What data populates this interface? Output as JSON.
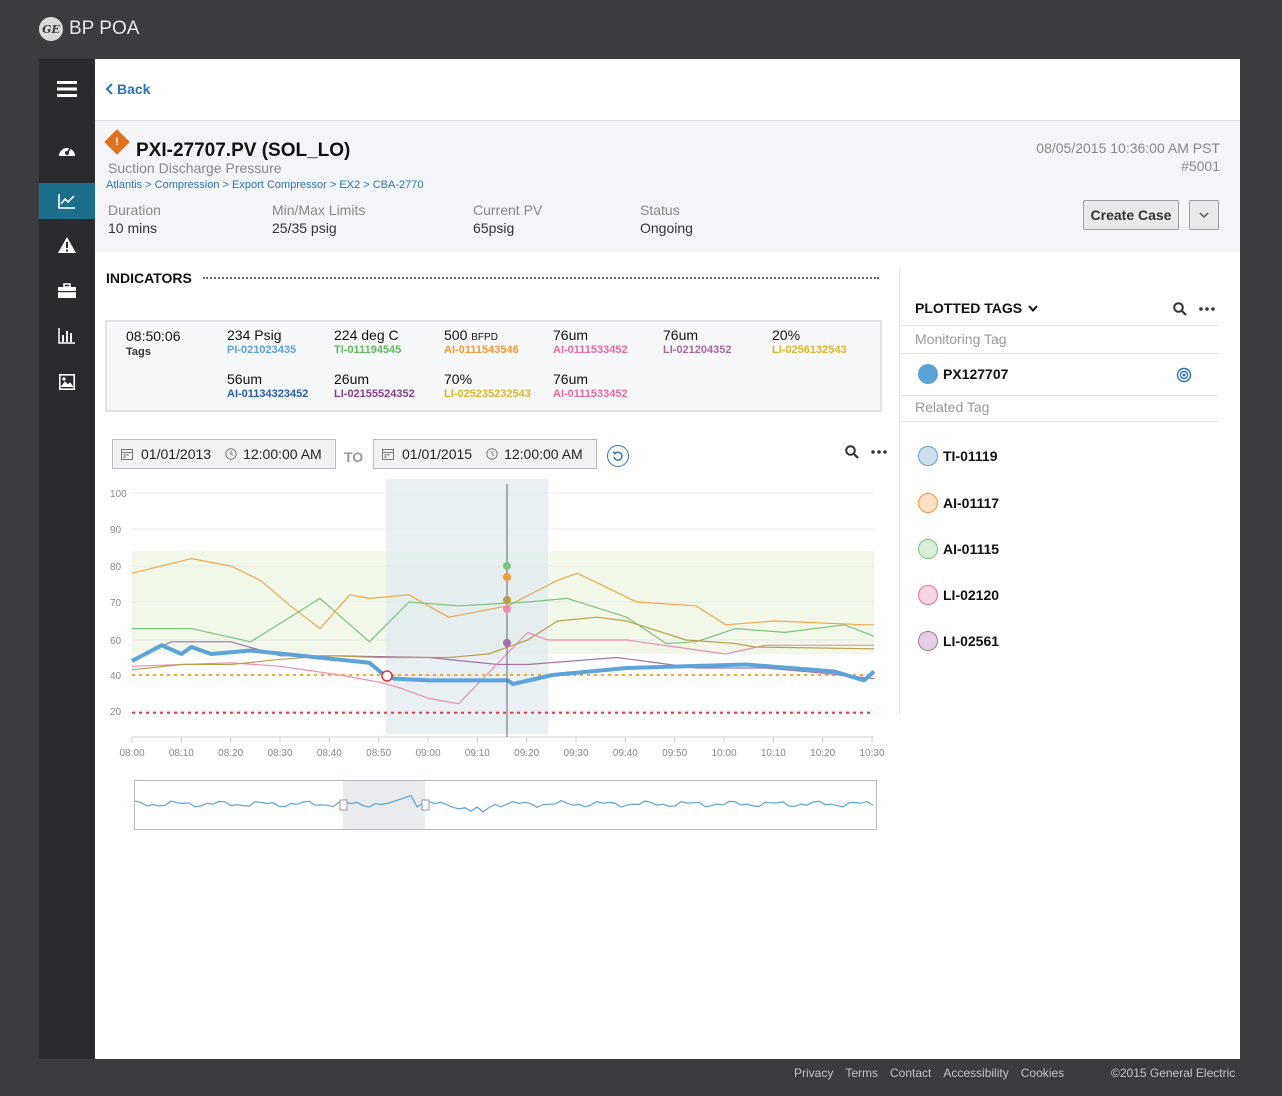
{
  "app": {
    "logo_text": "GE",
    "title": "BP POA"
  },
  "nav": {
    "items": [
      {
        "icon": "menu-icon"
      },
      {
        "icon": "dashboard-icon"
      },
      {
        "icon": "trend-chart-icon",
        "active": true
      },
      {
        "icon": "alert-icon"
      },
      {
        "icon": "briefcase-icon"
      },
      {
        "icon": "bar-chart-icon"
      },
      {
        "icon": "image-report-icon"
      }
    ]
  },
  "back_label": "Back",
  "header": {
    "alert_symbol": "!",
    "title": "PXI-27707.PV (SOL_LO)",
    "subtitle": "Suction Discharge Pressure",
    "breadcrumb": [
      "Atlantis",
      "Compression",
      "Export Compressor",
      "EX2",
      "CBA-2770"
    ],
    "breadcrumb_sep": ">",
    "datetime": "08/05/2015 10:36:00 AM PST",
    "event_id": "#5001",
    "meta": [
      {
        "label": "Duration",
        "value": "10 mins"
      },
      {
        "label": "Min/Max Limits",
        "value": "25/35 psig"
      },
      {
        "label": "Current PV",
        "value": "65psig"
      },
      {
        "label": "Status",
        "value": "Ongoing"
      }
    ],
    "create_case_label": "Create Case"
  },
  "indicators": {
    "title": "INDICATORS",
    "time": "08:50:06",
    "tags_label": "Tags",
    "items": [
      {
        "value": "234 Psig",
        "unit": "",
        "tag": "PI-021023435",
        "color": "#5ba3d9"
      },
      {
        "value": "224 deg C",
        "unit": "",
        "tag": "TI-011194545",
        "color": "#5fb85f"
      },
      {
        "value": "500",
        "unit": "BFPD",
        "tag": "AI-0111543546",
        "color": "#f29a36"
      },
      {
        "value": "76um",
        "unit": "",
        "tag": "AI-0111533452",
        "color": "#e86a9e"
      },
      {
        "value": "76um",
        "unit": "",
        "tag": "LI-021204352",
        "color": "#a8659d"
      },
      {
        "value": "20%",
        "unit": "",
        "tag": "LI-0256132543",
        "color": "#d9b82a"
      },
      {
        "value": "56um",
        "unit": "",
        "tag": "AI-01134323452",
        "color": "#2a5fa8"
      },
      {
        "value": "26um",
        "unit": "",
        "tag": "LI-02155524352",
        "color": "#8a3d8a"
      },
      {
        "value": "70%",
        "unit": "",
        "tag": "LI-025235232543",
        "color": "#d9b82a"
      },
      {
        "value": "76um",
        "unit": "",
        "tag": "AI-0111533452",
        "color": "#e86a9e"
      }
    ]
  },
  "range": {
    "from_date": "01/01/2013",
    "from_time": "12:00:00 AM",
    "to_label": "TO",
    "to_date": "01/01/2015",
    "to_time": "12:00:00 AM"
  },
  "chart_data": {
    "type": "line",
    "x": [
      "08:00",
      "08:10",
      "08:20",
      "08:30",
      "08:40",
      "08:50",
      "09:00",
      "09:10",
      "09:20",
      "09:30",
      "09:40",
      "09:50",
      "10:00",
      "10:10",
      "10:20",
      "10:30"
    ],
    "y_ticks": [
      100,
      90,
      80,
      70,
      60,
      40,
      20
    ],
    "grid": true,
    "series": [
      {
        "name": "PX127707",
        "color": "#5ba3d9",
        "width": 4,
        "points": [
          [
            0,
            48
          ],
          [
            6,
            57
          ],
          [
            10,
            52
          ],
          [
            12,
            56
          ],
          [
            16,
            52
          ],
          [
            24,
            54
          ],
          [
            48,
            47
          ],
          [
            51,
            40
          ],
          [
            53,
            38
          ],
          [
            60,
            37
          ],
          [
            76,
            37
          ],
          [
            77,
            35
          ],
          [
            85,
            40
          ],
          [
            100,
            44
          ],
          [
            124,
            46
          ],
          [
            142,
            42
          ],
          [
            148,
            37
          ],
          [
            150,
            42
          ]
        ]
      },
      {
        "name": "AI-01117",
        "color": "#f5a64a",
        "width": 1.2,
        "points": [
          [
            0,
            78
          ],
          [
            12,
            82
          ],
          [
            20,
            80
          ],
          [
            26,
            76
          ],
          [
            32,
            69
          ],
          [
            38,
            63
          ],
          [
            44,
            72
          ],
          [
            48,
            71
          ],
          [
            56,
            72
          ],
          [
            64,
            66
          ],
          [
            76,
            69
          ],
          [
            86,
            76
          ],
          [
            90,
            78
          ],
          [
            102,
            70
          ],
          [
            114,
            69
          ],
          [
            120,
            64
          ],
          [
            130,
            65
          ],
          [
            148,
            64
          ],
          [
            150,
            64
          ]
        ]
      },
      {
        "name": "TI-01119",
        "color": "#7cc47c",
        "width": 1.2,
        "points": [
          [
            0,
            63
          ],
          [
            6,
            63
          ],
          [
            12,
            63
          ],
          [
            24,
            59
          ],
          [
            38,
            71
          ],
          [
            48,
            59
          ],
          [
            56,
            70
          ],
          [
            66,
            69
          ],
          [
            80,
            70
          ],
          [
            88,
            71
          ],
          [
            100,
            66
          ],
          [
            108,
            58
          ],
          [
            114,
            59
          ],
          [
            122,
            63
          ],
          [
            132,
            62
          ],
          [
            144,
            64
          ],
          [
            150,
            61
          ]
        ]
      },
      {
        "name": "LI-02561",
        "color": "#a871a8",
        "width": 1.2,
        "points": [
          [
            0,
            49
          ],
          [
            8,
            59
          ],
          [
            20,
            59
          ],
          [
            30,
            51
          ],
          [
            42,
            51
          ],
          [
            60,
            50
          ],
          [
            74,
            46
          ],
          [
            80,
            46
          ],
          [
            98,
            50
          ],
          [
            114,
            44
          ],
          [
            128,
            44
          ],
          [
            140,
            41
          ],
          [
            150,
            38
          ]
        ]
      },
      {
        "name": "LI-02120",
        "color": "#f08cb0",
        "width": 1.2,
        "points": [
          [
            0,
            45
          ],
          [
            10,
            46
          ],
          [
            20,
            47
          ],
          [
            30,
            45
          ],
          [
            42,
            40
          ],
          [
            50,
            36
          ],
          [
            54,
            33
          ],
          [
            60,
            27
          ],
          [
            66,
            24
          ],
          [
            80,
            62
          ],
          [
            84,
            60
          ],
          [
            100,
            60
          ],
          [
            110,
            56
          ],
          [
            120,
            52
          ],
          [
            128,
            57
          ],
          [
            150,
            57
          ]
        ]
      },
      {
        "name": "AI-01115",
        "color": "#b8a14a",
        "width": 1.2,
        "points": [
          [
            0,
            43
          ],
          [
            10,
            46
          ],
          [
            20,
            46
          ],
          [
            30,
            49
          ],
          [
            40,
            51
          ],
          [
            50,
            50
          ],
          [
            64,
            50
          ],
          [
            72,
            52
          ],
          [
            80,
            60
          ],
          [
            86,
            65
          ],
          [
            94,
            66
          ],
          [
            100,
            65
          ],
          [
            112,
            60
          ],
          [
            122,
            58
          ],
          [
            126,
            56
          ],
          [
            150,
            55
          ]
        ]
      }
    ],
    "thresholds": [
      {
        "value": 40,
        "color": "#f2a93b"
      },
      {
        "value": 19,
        "color": "#e8364a"
      }
    ]
  },
  "plotted_tags": {
    "title": "PLOTTED TAGS",
    "monitoring_label": "Monitoring Tag",
    "monitoring": {
      "name": "PX127707",
      "color": "#5ba3d9"
    },
    "related_label": "Related Tag",
    "related": [
      {
        "name": "TI-01119",
        "fill": "#cfe0f3",
        "stroke": "#5ba3d9"
      },
      {
        "name": "AI-01117",
        "fill": "#fde0c3",
        "stroke": "#f29a36"
      },
      {
        "name": "AI-01115",
        "fill": "#d6efd6",
        "stroke": "#7cc47c"
      },
      {
        "name": "LI-02120",
        "fill": "#fbd5e4",
        "stroke": "#e86a9e"
      },
      {
        "name": "LI-02561",
        "fill": "#e5d1e6",
        "stroke": "#a871a8"
      }
    ]
  },
  "footer": {
    "links": [
      "Privacy",
      "Terms",
      "Contact",
      "Accessibility",
      "Cookies"
    ],
    "copyright": "©2015 General Electric"
  }
}
